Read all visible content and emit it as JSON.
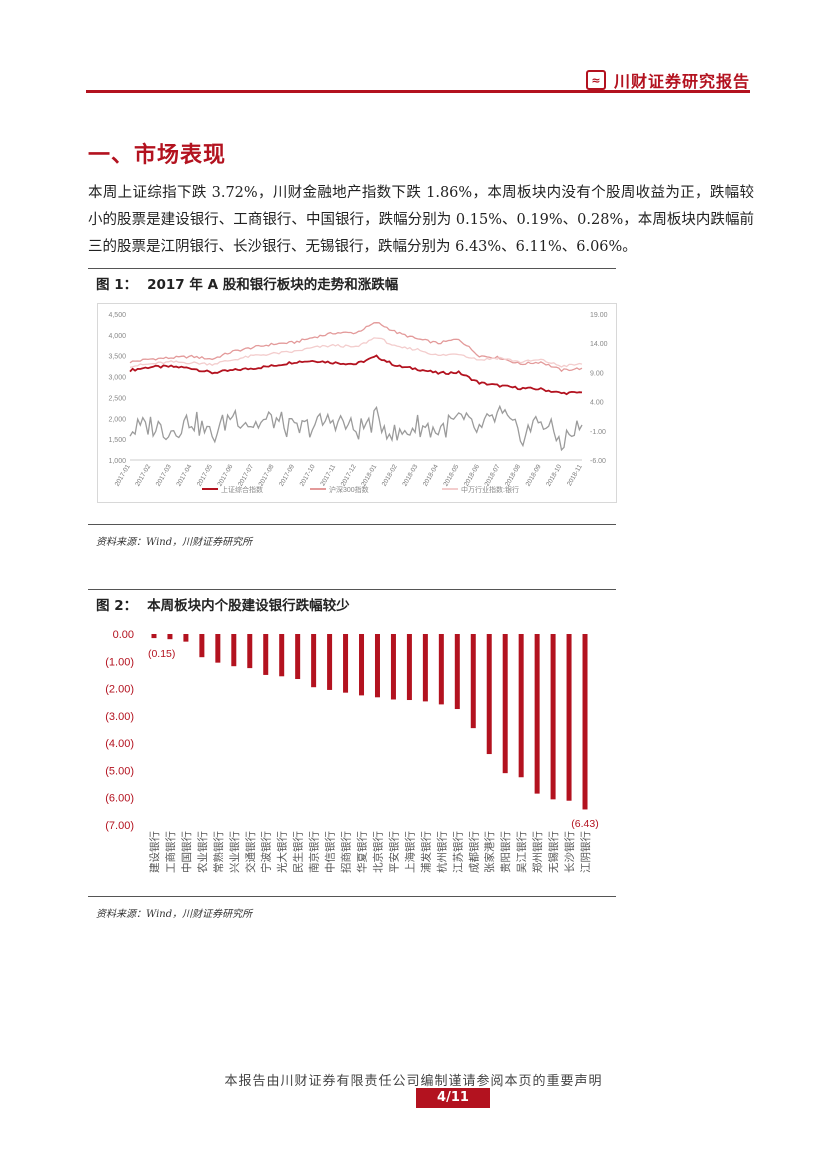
{
  "header": {
    "brand": "川财证券研究报告",
    "logo_glyph": "≈"
  },
  "section": {
    "title": "一、市场表现"
  },
  "body_text": "本周上证综指下跌 3.72%，川财金融地产指数下跌 1.86%，本周板块内没有个股周收益为正，跌幅较小的股票是建设银行、工商银行、中国银行，跌幅分别为 0.15%、0.19%、0.28%，本周板块内跌幅前三的股票是江阴银行、长沙银行、无锡银行，跌幅分别为 6.43%、6.11%、6.06%。",
  "figure1": {
    "label": "图 1：",
    "title": "2017 年 A 股和银行板块的走势和涨跌幅",
    "source": "资料来源：Wind，川财证券研究所"
  },
  "figure2": {
    "label": "图 2：",
    "title": "本周板块内个股建设银行跌幅较少",
    "source": "资料来源：Wind，川财证券研究所"
  },
  "chart_data": [
    {
      "type": "line",
      "title": "",
      "x": [
        "2017-01",
        "2017-02",
        "2017-03",
        "2017-04",
        "2017-05",
        "2017-06",
        "2017-07",
        "2017-08",
        "2017-09",
        "2017-10",
        "2017-11",
        "2017-12",
        "2018-01",
        "2018-02",
        "2018-03",
        "2018-04",
        "2018-05",
        "2018-06",
        "2018-07",
        "2018-08",
        "2018-09",
        "2018-10",
        "2018-11"
      ],
      "y_left_ticks": [
        "4,500",
        "4,000",
        "3,500",
        "3,000",
        "2,500",
        "2,000",
        "1,500",
        "1,000"
      ],
      "y_right_ticks": [
        "19.00",
        "14.00",
        "9.00",
        "4.00",
        "-1.00",
        "-6.00"
      ],
      "ylim_left": [
        1000,
        4500
      ],
      "ylim_right": [
        -6,
        19
      ],
      "grid": false,
      "legend_position": "bottom",
      "series": [
        {
          "name": "上证综合指数",
          "color": "#b3121f",
          "axis": "left",
          "values": [
            3150,
            3230,
            3240,
            3200,
            3090,
            3150,
            3200,
            3260,
            3350,
            3380,
            3330,
            3300,
            3480,
            3250,
            3180,
            3080,
            3100,
            2850,
            2780,
            2720,
            2700,
            2600,
            2620
          ]
        },
        {
          "name": "沪深300指数",
          "color": "#e39a9a",
          "axis": "left",
          "values": [
            3350,
            3420,
            3450,
            3480,
            3420,
            3600,
            3700,
            3780,
            3820,
            3950,
            4050,
            4050,
            4300,
            4050,
            3900,
            3800,
            3900,
            3500,
            3450,
            3300,
            3350,
            3150,
            3200
          ]
        },
        {
          "name": "中万行业指数:银行",
          "color": "#f3cdcd",
          "axis": "left",
          "values": [
            3250,
            3300,
            3350,
            3330,
            3300,
            3400,
            3500,
            3550,
            3600,
            3700,
            3750,
            3700,
            3950,
            3700,
            3650,
            3500,
            3550,
            3400,
            3450,
            3350,
            3400,
            3250,
            3300
          ]
        },
        {
          "name": "",
          "color": "#9b9b9b",
          "axis": "right",
          "values": [
            -1,
            0,
            -1,
            1,
            -2,
            2,
            0,
            1,
            -1,
            0,
            1,
            -1,
            1,
            -2,
            0,
            -1,
            1,
            -1,
            2,
            -2,
            1,
            -3,
            0
          ]
        }
      ]
    },
    {
      "type": "bar",
      "title": "",
      "categories": [
        "建设银行",
        "工商银行",
        "中国银行",
        "农业银行",
        "常熟银行",
        "兴业银行",
        "交通银行",
        "宁波银行",
        "光大银行",
        "民生银行",
        "南京银行",
        "中信银行",
        "招商银行",
        "华夏银行",
        "北京银行",
        "平安银行",
        "上海银行",
        "浦发银行",
        "杭州银行",
        "江苏银行",
        "成都银行",
        "张家港行",
        "贵阳银行",
        "吴江银行",
        "郑州银行",
        "无锡银行",
        "长沙银行",
        "江阴银行"
      ],
      "values": [
        -0.15,
        -0.19,
        -0.28,
        -0.85,
        -1.05,
        -1.18,
        -1.25,
        -1.5,
        -1.55,
        -1.65,
        -1.95,
        -2.05,
        -2.15,
        -2.25,
        -2.32,
        -2.4,
        -2.42,
        -2.47,
        -2.58,
        -2.75,
        -3.45,
        -4.4,
        -5.1,
        -5.25,
        -5.85,
        -6.06,
        -6.11,
        -6.43
      ],
      "data_labels": {
        "first": "(0.15)",
        "last": "(6.43)"
      },
      "y_ticks": [
        "0.00",
        "(1.00)",
        "(2.00)",
        "(3.00)",
        "(4.00)",
        "(5.00)",
        "(6.00)",
        "(7.00)"
      ],
      "ylim": [
        -7,
        0
      ],
      "bar_color": "#b3121f",
      "grid": false
    }
  ]
}
